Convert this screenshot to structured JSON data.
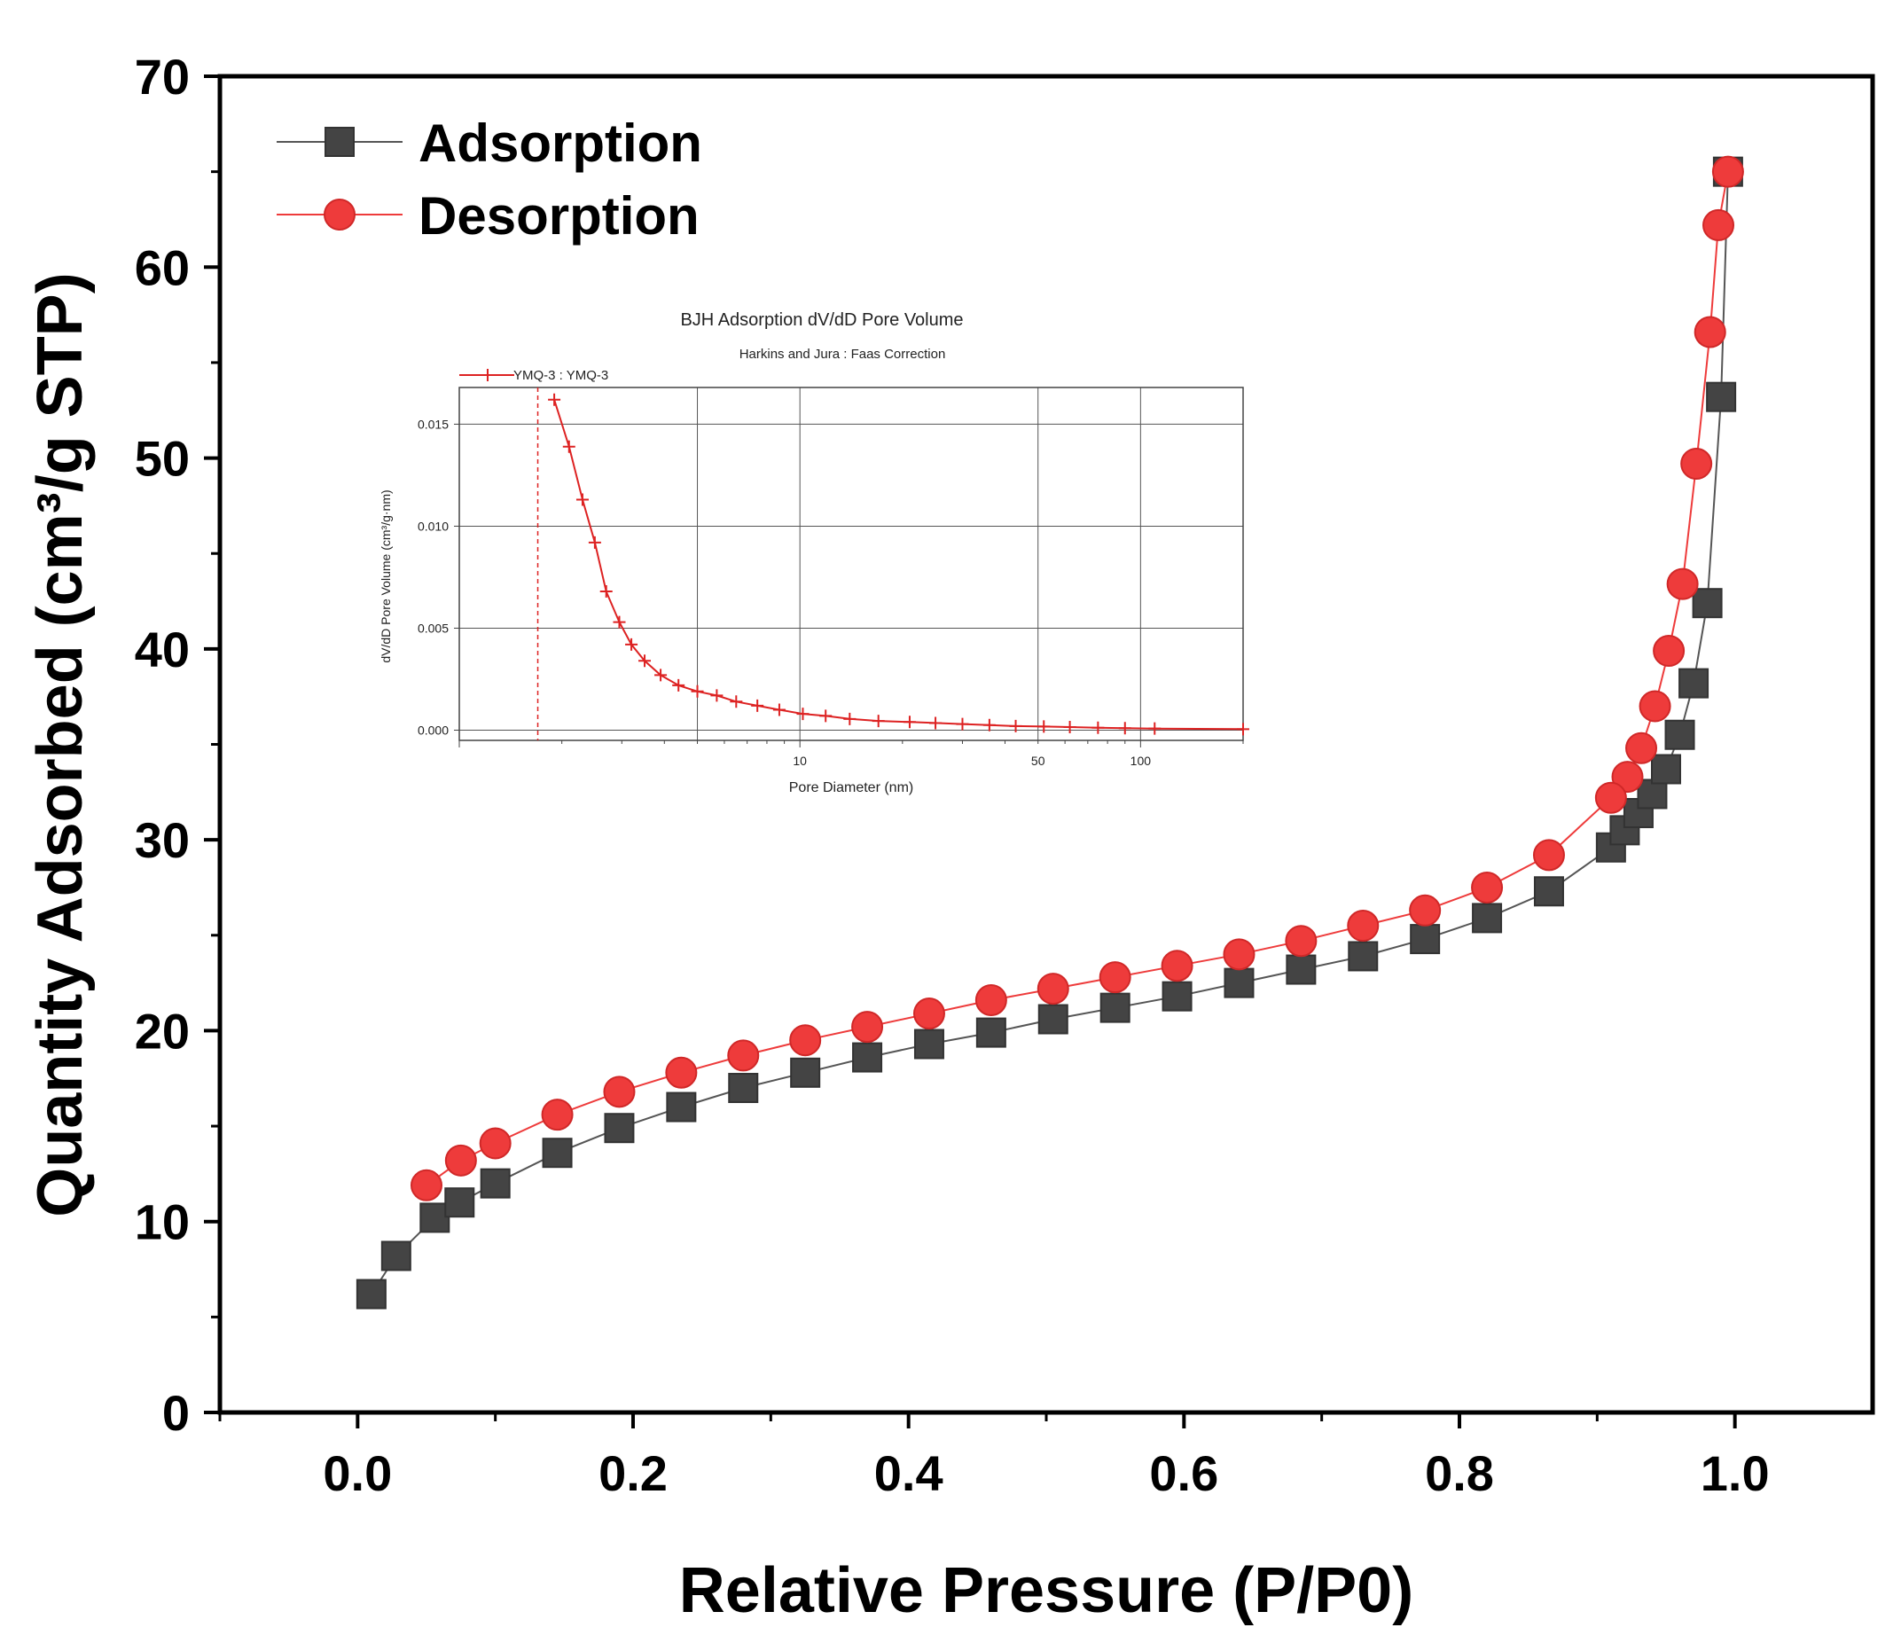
{
  "chart_data": [
    {
      "type": "line",
      "title": "",
      "xlabel": "Relative Pressure (P/P0)",
      "ylabel": "Quantity Adsorbed (cm³/g STP)",
      "xlim": [
        -0.1,
        1.1
      ],
      "ylim": [
        0,
        70
      ],
      "x_ticks": [
        "0.0",
        "0.2",
        "0.4",
        "0.6",
        "0.8",
        "1.0"
      ],
      "y_ticks": [
        "0",
        "10",
        "20",
        "30",
        "40",
        "50",
        "60",
        "70"
      ],
      "grid": false,
      "legend_position": "top-left",
      "series": [
        {
          "name": "Adsorption",
          "marker": "square",
          "color": "#444444",
          "line_color": "#555555",
          "x": [
            0.01,
            0.028,
            0.056,
            0.074,
            0.1,
            0.145,
            0.19,
            0.235,
            0.28,
            0.325,
            0.37,
            0.415,
            0.46,
            0.505,
            0.55,
            0.595,
            0.64,
            0.685,
            0.73,
            0.775,
            0.82,
            0.865,
            0.91,
            0.92,
            0.93,
            0.94,
            0.95,
            0.96,
            0.97,
            0.98,
            0.99,
            0.995
          ],
          "y": [
            6.2,
            8.2,
            10.2,
            11.0,
            12.0,
            13.6,
            14.9,
            16.0,
            17.0,
            17.8,
            18.6,
            19.3,
            19.9,
            20.6,
            21.2,
            21.8,
            22.5,
            23.2,
            23.9,
            24.8,
            25.9,
            27.3,
            29.6,
            30.5,
            31.4,
            32.4,
            33.7,
            35.5,
            38.2,
            42.4,
            53.2,
            65.0
          ]
        },
        {
          "name": "Desorption",
          "marker": "circle",
          "color": "#ee3b3b",
          "line_color": "#ee3b3b",
          "x": [
            0.995,
            0.988,
            0.982,
            0.972,
            0.962,
            0.952,
            0.942,
            0.932,
            0.922,
            0.91,
            0.865,
            0.82,
            0.775,
            0.73,
            0.685,
            0.64,
            0.595,
            0.55,
            0.505,
            0.46,
            0.415,
            0.37,
            0.325,
            0.28,
            0.235,
            0.19,
            0.145,
            0.1,
            0.075,
            0.05
          ],
          "y": [
            65.0,
            62.2,
            56.6,
            49.7,
            43.4,
            39.9,
            37.0,
            34.8,
            33.3,
            32.2,
            29.2,
            27.5,
            26.3,
            25.5,
            24.7,
            24.0,
            23.4,
            22.8,
            22.2,
            21.6,
            20.9,
            20.2,
            19.5,
            18.7,
            17.8,
            16.8,
            15.6,
            14.1,
            13.2,
            11.9
          ]
        }
      ]
    },
    {
      "type": "line",
      "title": "BJH Adsorption dV/dD Pore Volume",
      "subtitle": "Harkins and Jura : Faas Correction",
      "xlabel": "Pore Diameter (nm)",
      "ylabel": "dV/dD Pore Volume (cm³/g·nm)",
      "x_scale": "log",
      "xlim": [
        1,
        200
      ],
      "ylim": [
        -0.0005,
        0.0168
      ],
      "x_tick_labels": [
        {
          "value": 10,
          "label": "10"
        },
        {
          "value": 50,
          "label": "50"
        },
        {
          "value": 100,
          "label": "100"
        }
      ],
      "y_tick_labels": [
        "0.000",
        "0.005",
        "0.010",
        "0.015"
      ],
      "grid": true,
      "legend_position": "top-left",
      "reference_line_x": 1.7,
      "series": [
        {
          "name": "YMQ-3 : YMQ-3",
          "marker": "plus",
          "color": "#dd2222",
          "x": [
            1.9,
            2.1,
            2.3,
            2.5,
            2.7,
            2.95,
            3.2,
            3.5,
            3.9,
            4.4,
            5.0,
            5.7,
            6.5,
            7.5,
            8.7,
            10.2,
            11.9,
            14,
            17,
            21,
            25,
            30,
            36,
            43,
            52,
            62,
            75,
            90,
            110,
            200
          ],
          "y": [
            0.0162,
            0.0139,
            0.0113,
            0.0092,
            0.0068,
            0.0053,
            0.0042,
            0.0034,
            0.0027,
            0.0022,
            0.0019,
            0.0017,
            0.0014,
            0.0012,
            0.001,
            0.0008,
            0.0007,
            0.00055,
            0.00045,
            0.0004,
            0.00035,
            0.0003,
            0.00025,
            0.0002,
            0.00018,
            0.00015,
            0.00012,
            0.0001,
            8e-05,
            5e-05
          ]
        }
      ]
    }
  ]
}
